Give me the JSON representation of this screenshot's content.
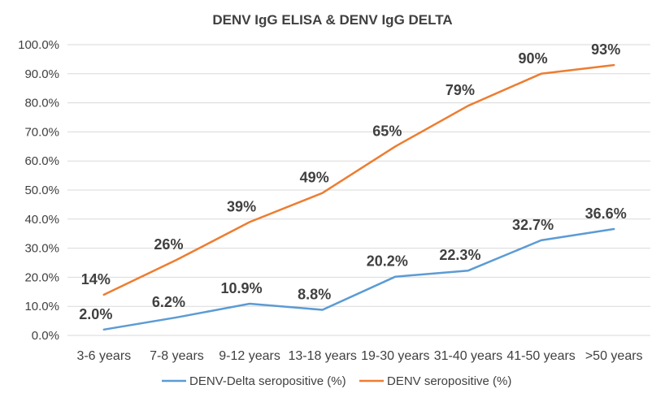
{
  "chart_data": {
    "type": "line",
    "title": "DENV IgG ELISA & DENV IgG DELTA",
    "categories": [
      "3-6 years",
      "7-8 years",
      "9-12 years",
      "13-18 years",
      "19-30 years",
      "31-40 years",
      "41-50 years",
      ">50 years"
    ],
    "ylim": [
      0,
      100
    ],
    "yticks": [
      "0.0%",
      "10.0%",
      "20.0%",
      "30.0%",
      "40.0%",
      "50.0%",
      "60.0%",
      "70.0%",
      "80.0%",
      "90.0%",
      "100.0%"
    ],
    "grid": true,
    "legend_position": "bottom",
    "series": [
      {
        "name": "DENV-Delta seropositive (%)",
        "color": "#5b9bd5",
        "values": [
          2.0,
          6.2,
          10.9,
          8.8,
          20.2,
          22.3,
          32.7,
          36.6
        ],
        "labels": [
          "2.0%",
          "6.2%",
          "10.9%",
          "8.8%",
          "20.2%",
          "22.3%",
          "32.7%",
          "36.6%"
        ]
      },
      {
        "name": "DENV seropositive (%)",
        "color": "#ed7d31",
        "values": [
          14,
          26,
          39,
          49,
          65,
          79,
          90,
          93
        ],
        "labels": [
          "14%",
          "26%",
          "39%",
          "49%",
          "65%",
          "79%",
          "90%",
          "93%"
        ]
      }
    ]
  }
}
